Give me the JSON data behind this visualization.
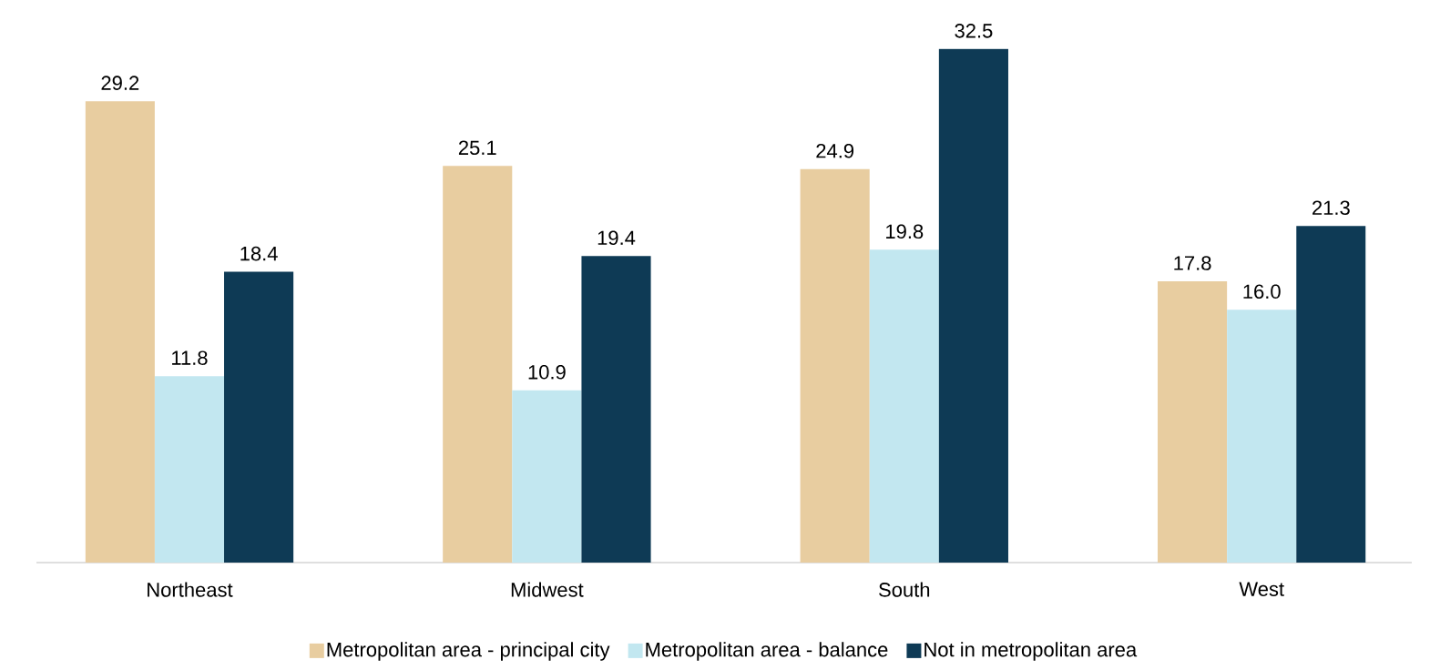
{
  "chart_data": {
    "type": "bar",
    "categories": [
      "Northeast",
      "Midwest",
      "South",
      "West"
    ],
    "series": [
      {
        "name": "Metropolitan area - principal city",
        "color": "#e8cda0",
        "values": [
          29.2,
          25.1,
          24.9,
          17.8
        ],
        "value_labels": [
          "29.2",
          "25.1",
          "24.9",
          "17.8"
        ]
      },
      {
        "name": "Metropolitan area - balance",
        "color": "#c2e7f0",
        "values": [
          11.8,
          10.9,
          19.8,
          16.0
        ],
        "value_labels": [
          "11.8",
          "10.9",
          "19.8",
          "16.0"
        ]
      },
      {
        "name": "Not in metropolitan area",
        "color": "#0e3a55",
        "values": [
          18.4,
          19.4,
          32.5,
          21.3
        ],
        "value_labels": [
          "18.4",
          "19.4",
          "32.5",
          "21.3"
        ]
      }
    ],
    "legend": "bottom"
  }
}
